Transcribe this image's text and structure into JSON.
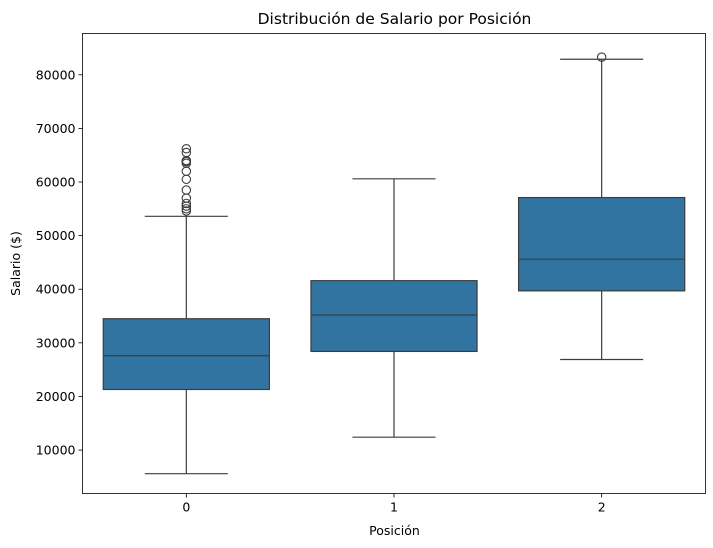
{
  "chart_data": {
    "type": "box",
    "title": "Distribución de Salario por Posición",
    "xlabel": "Posición",
    "ylabel": "Salario ($)",
    "categories": [
      "0",
      "1",
      "2"
    ],
    "ylim": [
      1900,
      87700
    ],
    "yticks": [
      10000,
      20000,
      30000,
      40000,
      50000,
      60000,
      70000,
      80000
    ],
    "ytick_labels": [
      "10000",
      "20000",
      "30000",
      "40000",
      "50000",
      "60000",
      "70000",
      "80000"
    ],
    "box_color": "#3274a1",
    "line_color": "#3d3d3d",
    "boxes": [
      {
        "category": "0",
        "whisker_low": 5600,
        "q1": 21300,
        "median": 27600,
        "q3": 34500,
        "whisker_high": 53600,
        "outliers": [
          54600,
          55000,
          55500,
          56000,
          57000,
          58500,
          60500,
          62000,
          63500,
          63800,
          64000,
          65500,
          66200
        ]
      },
      {
        "category": "1",
        "whisker_low": 12400,
        "q1": 28400,
        "median": 35200,
        "q3": 41600,
        "whisker_high": 60600,
        "outliers": []
      },
      {
        "category": "2",
        "whisker_low": 26900,
        "q1": 39700,
        "median": 45600,
        "q3": 57100,
        "whisker_high": 82900,
        "outliers": [
          83300
        ]
      }
    ],
    "grid": false,
    "legend": "none"
  }
}
